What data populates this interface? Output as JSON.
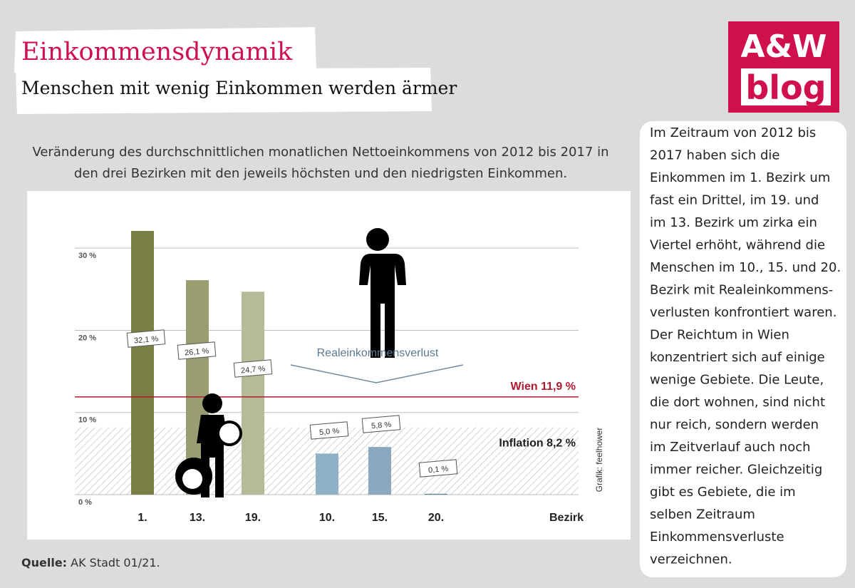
{
  "header": {
    "title": "Einkommensdynamik",
    "subtitle": "Menschen mit wenig Einkommen werden ärmer"
  },
  "logo": {
    "line1": "A&W",
    "line2": "blog"
  },
  "chart_data": {
    "type": "bar",
    "caption": [
      "Veränderung des durchschnittlichen monatlichen Nettoeinkommens von 2012 bis 2017 in",
      "den drei Bezirken mit den jeweils höchsten und den niedrigsten Einkommen."
    ],
    "categories": [
      "1.",
      "13.",
      "19.",
      "10.",
      "15.",
      "20."
    ],
    "values": [
      32.1,
      26.1,
      24.7,
      5.0,
      5.8,
      0.1
    ],
    "value_labels": [
      "32,1 %",
      "26,1 %",
      "24,7 %",
      "5,0 %",
      "5,8 %",
      "0,1 %"
    ],
    "colors": [
      "#7a7f45",
      "#9a9d72",
      "#b7ba96",
      "#8fb1c8",
      "#8aa9bf",
      "#5f7f97"
    ],
    "ylim": [
      0,
      36
    ],
    "yticks": [
      {
        "value": 0,
        "label": "0 %"
      },
      {
        "value": 10,
        "label": "10 %"
      },
      {
        "value": 20,
        "label": "20 %"
      },
      {
        "value": 30,
        "label": "30 %"
      }
    ],
    "grid": true,
    "xlabel": "Bezirk",
    "reference_lines": [
      {
        "label": "Wien 11,9 %",
        "value": 11.9,
        "color": "#b01a2e",
        "style": "line"
      },
      {
        "label": "Inflation 8,2 %",
        "value": 8.2,
        "color": "#222222",
        "style": "hatched"
      }
    ],
    "annotation": "Realeinkommensverlust",
    "credit": "Grafik: feelhower"
  },
  "sidebar": {
    "lines": [
      "Im Zeitraum von 2012 bis",
      "2017 haben sich die",
      "Einkommen im 1. Bezirk um",
      "fast ein Drittel, im 19. und",
      "im 13. Bezirk um zirka ein",
      "Viertel erhöht, während die",
      "Menschen im 10., 15. und 20.",
      "Bezirk mit Realeinkommens-",
      "verlusten konfrontiert waren.",
      "Der Reichtum in Wien",
      "konzentriert sich auf einige",
      "wenige Gebiete. Die Leute,",
      "die dort wohnen, sind nicht",
      "nur reich, sondern werden",
      "im Zeitverlauf auch noch",
      "immer reicher. Gleichzeitig",
      "gibt es Gebiete, die im",
      "selben Zeitraum",
      "Einkommensverluste",
      "verzeichnen."
    ]
  },
  "source": {
    "label": "Quelle:",
    "text": "AK Stadt 01/21."
  }
}
